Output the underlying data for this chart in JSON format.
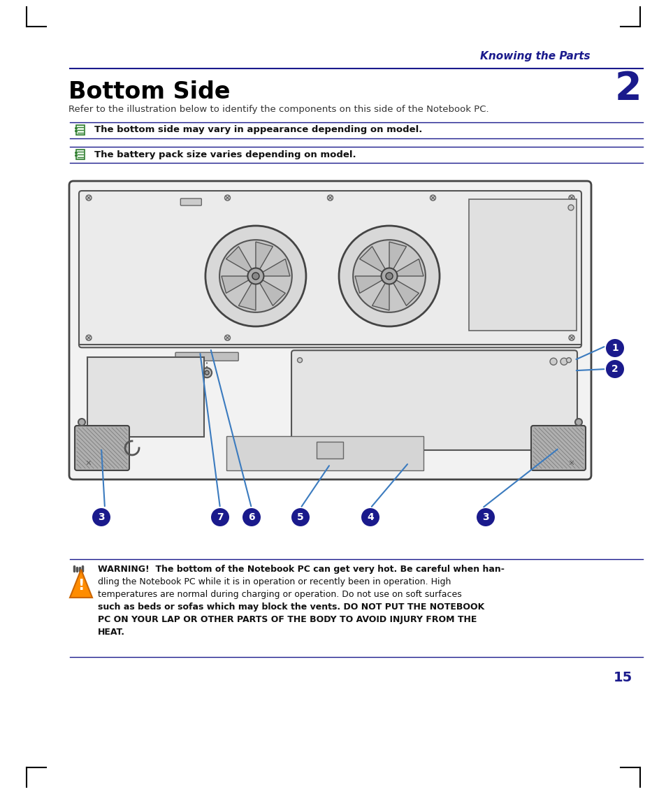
{
  "bg_color": "#ffffff",
  "header_text": "Knowing the Parts",
  "header_number": "2",
  "header_color": "#1a1a8c",
  "title": "Bottom Side",
  "subtitle": "Refer to the illustration below to identify the components on this side of the Notebook PC.",
  "note1": "The bottom side may vary in appearance depending on model.",
  "note2": "The battery pack size varies depending on model.",
  "warning_line1": "WARNING!  The bottom of the Notebook PC can get very hot. Be careful when han-",
  "warning_line2": "dling the Notebook PC while it is in operation or recently been in operation. High",
  "warning_line3": "temperatures are normal during charging or operation. Do not use on soft surfaces",
  "warning_line4": "such as beds or sofas which may block the vents. DO NOT PUT THE NOTEBOOK",
  "warning_line5": "PC ON YOUR LAP OR OTHER PARTS OF THE BODY TO AVOID INJURY FROM THE",
  "warning_line6": "HEAT.",
  "page_number": "15",
  "line_color": "#1a1a8c",
  "arrow_color": "#3b7bbf",
  "callout_bg": "#1a1a8c",
  "dark_color": "#333333",
  "mid_color": "#888888",
  "light_color": "#dddddd",
  "body_fill": "#f2f2f2",
  "panel_fill": "#e8e8e8"
}
